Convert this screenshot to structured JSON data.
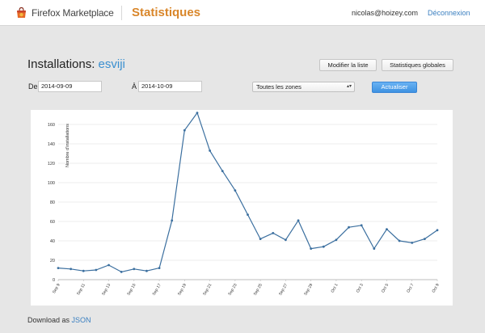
{
  "header": {
    "brand": "Firefox Marketplace",
    "section": "Statistiques",
    "user_email": "nicolas@hoizey.com",
    "logout": "Déconnexion"
  },
  "title": {
    "prefix": "Installations: ",
    "app_name": "esviji"
  },
  "actions": {
    "edit_list": "Modifier la liste",
    "global_stats": "Statistiques globales"
  },
  "filters": {
    "from_label": "De",
    "from_value": "2014-09-09",
    "to_label": "À",
    "to_value": "2014-10-09",
    "zone": "Toutes les zones",
    "refresh": "Actualiser"
  },
  "chart_data": {
    "type": "line",
    "ylabel": "Nombre d'installations",
    "ylim": [
      0,
      170
    ],
    "yticks": [
      0,
      20,
      40,
      60,
      80,
      100,
      120,
      140,
      160
    ],
    "x": [
      "Sep 9",
      "Sep 10",
      "Sep 11",
      "Sep 12",
      "Sep 13",
      "Sep 14",
      "Sep 15",
      "Sep 16",
      "Sep 17",
      "Sep 18",
      "Sep 19",
      "Sep 20",
      "Sep 21",
      "Sep 22",
      "Sep 23",
      "Sep 24",
      "Sep 25",
      "Sep 26",
      "Sep 27",
      "Sep 28",
      "Sep 29",
      "Sep 30",
      "Oct 1",
      "Oct 2",
      "Oct 3",
      "Oct 4",
      "Oct 5",
      "Oct 6",
      "Oct 7",
      "Oct 8",
      "Oct 9"
    ],
    "xtick_labels": [
      "Sep 9",
      "Sep 11",
      "Sep 13",
      "Sep 15",
      "Sep 17",
      "Sep 19",
      "Sep 21",
      "Sep 23",
      "Sep 25",
      "Sep 27",
      "Sep 29",
      "Oct 1",
      "Oct 3",
      "Oct 5",
      "Oct 7",
      "Oct 9"
    ],
    "series": [
      {
        "values": [
          12,
          11,
          9,
          10,
          15,
          8,
          11,
          9,
          12,
          61,
          154,
          172,
          133,
          112,
          92,
          67,
          42,
          48,
          41,
          61,
          32,
          34,
          41,
          54,
          56,
          32,
          52,
          40,
          38,
          42,
          51
        ]
      }
    ],
    "line_color": "#3b6f9f",
    "grid": true
  },
  "footer": {
    "download_prefix": "Download as ",
    "json_link": "JSON"
  }
}
